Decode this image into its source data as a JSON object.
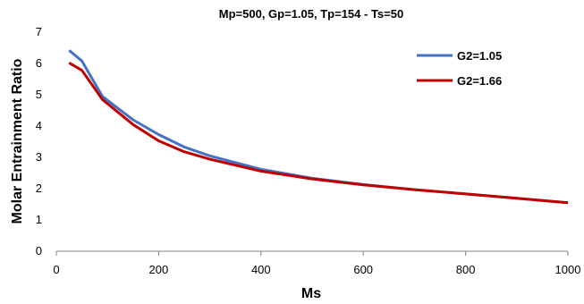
{
  "chart_data": {
    "type": "line",
    "title": "Mp=500, Gp=1.05, Tp=154  -  Ts=50",
    "xlabel": "Ms",
    "ylabel": "Molar Entrainment Ratio",
    "xlim": [
      0,
      1000
    ],
    "ylim": [
      0,
      7
    ],
    "xticks": [
      0,
      200,
      400,
      600,
      800,
      1000
    ],
    "yticks": [
      0,
      1,
      2,
      3,
      4,
      5,
      6,
      7
    ],
    "grid": false,
    "legend_position": "top-right",
    "series": [
      {
        "name": "G2=1.05",
        "color": "#4472C4",
        "x": [
          25,
          50,
          90,
          150,
          200,
          250,
          300,
          400,
          500,
          600,
          700,
          800,
          900,
          1000
        ],
        "y": [
          6.42,
          6.08,
          4.95,
          4.2,
          3.73,
          3.33,
          3.05,
          2.62,
          2.33,
          2.13,
          1.97,
          1.83,
          1.69,
          1.55
        ]
      },
      {
        "name": "G2=1.66",
        "color": "#C00000",
        "x": [
          25,
          50,
          90,
          150,
          200,
          250,
          300,
          400,
          500,
          600,
          700,
          800,
          900,
          1000
        ],
        "y": [
          6.02,
          5.78,
          4.85,
          4.05,
          3.53,
          3.18,
          2.94,
          2.56,
          2.31,
          2.12,
          1.97,
          1.83,
          1.69,
          1.55
        ]
      }
    ]
  }
}
